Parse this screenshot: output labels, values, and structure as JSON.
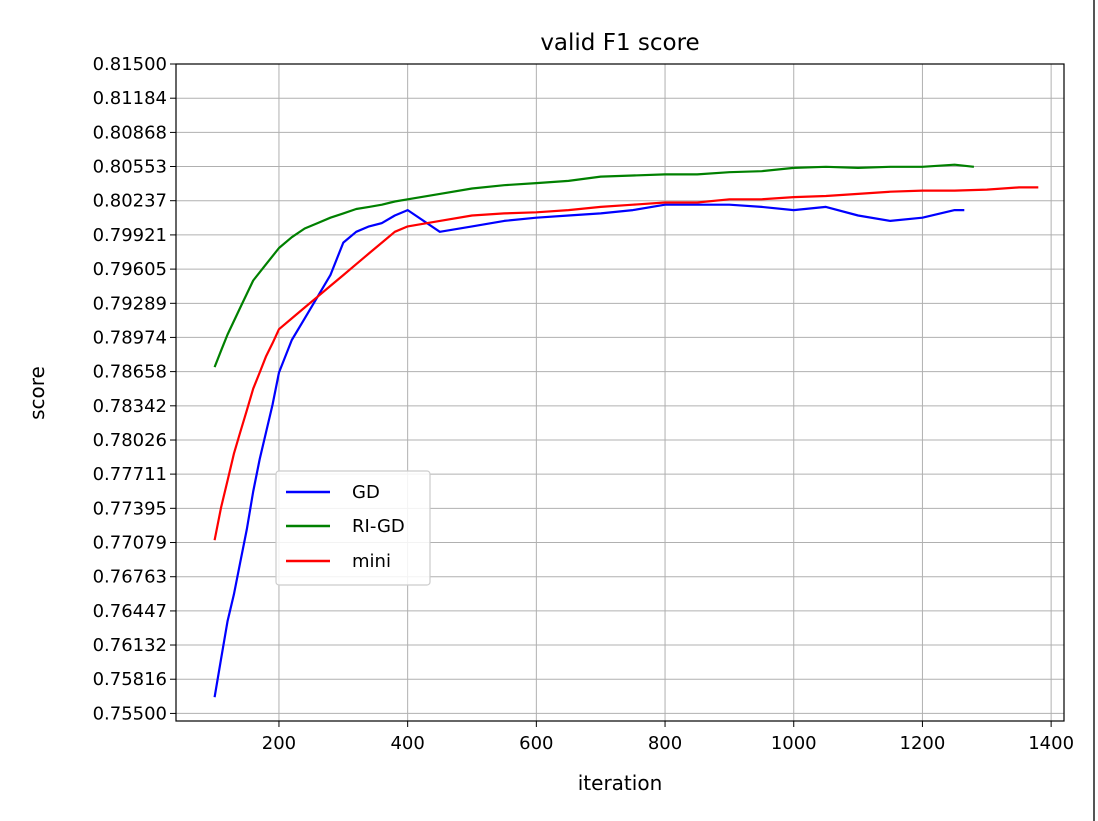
{
  "chart_data": {
    "type": "line",
    "title": "valid F1 score",
    "xlabel": "iteration",
    "ylabel": "score",
    "xlim": [
      40,
      1420
    ],
    "ylim": [
      0.7543,
      0.815
    ],
    "xticks": [
      200,
      400,
      600,
      800,
      1000,
      1200,
      1400
    ],
    "yticks": [
      "0.81500",
      "0.81184",
      "0.80868",
      "0.80553",
      "0.80237",
      "0.79921",
      "0.79605",
      "0.79289",
      "0.78974",
      "0.78658",
      "0.78342",
      "0.78026",
      "0.77711",
      "0.77395",
      "0.77079",
      "0.76763",
      "0.76447",
      "0.76132",
      "0.75816",
      "0.75500"
    ],
    "grid": true,
    "legend_position": "center-left",
    "series": [
      {
        "name": "GD",
        "color": "#0000ff",
        "x": [
          100,
          110,
          120,
          130,
          140,
          150,
          160,
          170,
          180,
          190,
          200,
          220,
          240,
          260,
          280,
          300,
          320,
          340,
          360,
          380,
          400,
          450,
          500,
          550,
          600,
          650,
          700,
          750,
          800,
          850,
          900,
          950,
          1000,
          1050,
          1100,
          1150,
          1200,
          1250,
          1265
        ],
        "values": [
          0.7565,
          0.76,
          0.7635,
          0.766,
          0.769,
          0.772,
          0.7755,
          0.7785,
          0.781,
          0.7835,
          0.7865,
          0.7895,
          0.7915,
          0.7935,
          0.7955,
          0.7985,
          0.7995,
          0.8,
          0.8003,
          0.801,
          0.8015,
          0.7995,
          0.8,
          0.8005,
          0.8008,
          0.801,
          0.8012,
          0.8015,
          0.802,
          0.802,
          0.802,
          0.8018,
          0.8015,
          0.8018,
          0.801,
          0.8005,
          0.8008,
          0.8015,
          0.8015
        ]
      },
      {
        "name": "RI-GD",
        "color": "#008000",
        "x": [
          100,
          110,
          120,
          140,
          160,
          180,
          200,
          220,
          240,
          260,
          280,
          300,
          320,
          340,
          360,
          380,
          400,
          450,
          500,
          550,
          600,
          650,
          700,
          750,
          800,
          850,
          900,
          950,
          1000,
          1050,
          1100,
          1150,
          1200,
          1250,
          1280
        ],
        "values": [
          0.787,
          0.7885,
          0.79,
          0.7925,
          0.795,
          0.7965,
          0.798,
          0.799,
          0.7998,
          0.8003,
          0.8008,
          0.8012,
          0.8016,
          0.8018,
          0.802,
          0.8023,
          0.8025,
          0.803,
          0.8035,
          0.8038,
          0.804,
          0.8042,
          0.8046,
          0.8047,
          0.8048,
          0.8048,
          0.805,
          0.8051,
          0.8054,
          0.8055,
          0.8054,
          0.8055,
          0.8055,
          0.8057,
          0.8055
        ]
      },
      {
        "name": "mini",
        "color": "#ff0000",
        "x": [
          100,
          110,
          120,
          130,
          140,
          150,
          160,
          170,
          180,
          190,
          200,
          220,
          240,
          260,
          280,
          300,
          320,
          340,
          360,
          380,
          400,
          450,
          500,
          550,
          600,
          650,
          700,
          750,
          800,
          850,
          900,
          950,
          1000,
          1050,
          1100,
          1150,
          1200,
          1250,
          1300,
          1350,
          1380
        ],
        "values": [
          0.771,
          0.774,
          0.7765,
          0.779,
          0.781,
          0.783,
          0.785,
          0.7865,
          0.788,
          0.7892,
          0.7905,
          0.7915,
          0.7925,
          0.7935,
          0.7945,
          0.7955,
          0.7965,
          0.7975,
          0.7985,
          0.7995,
          0.8,
          0.8005,
          0.801,
          0.8012,
          0.8013,
          0.8015,
          0.8018,
          0.802,
          0.8022,
          0.8022,
          0.8025,
          0.8025,
          0.8027,
          0.8028,
          0.803,
          0.8032,
          0.8033,
          0.8033,
          0.8034,
          0.8036,
          0.8036
        ]
      }
    ]
  }
}
